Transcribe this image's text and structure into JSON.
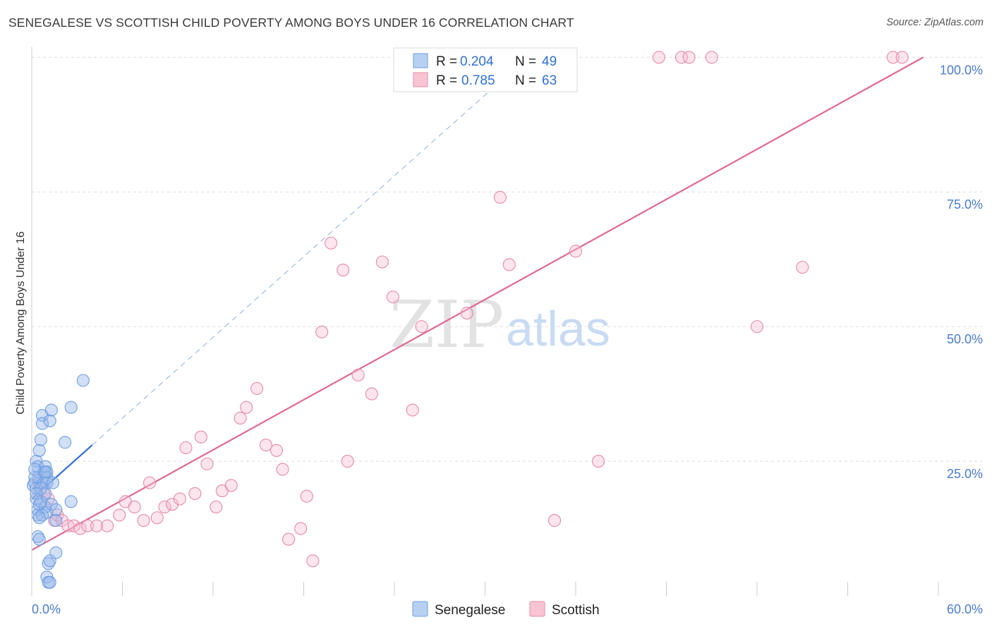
{
  "title": "SENEGALESE VS SCOTTISH CHILD POVERTY AMONG BOYS UNDER 16 CORRELATION CHART",
  "source": "Source: ZipAtlas.com",
  "watermark": {
    "zip": "ZIP",
    "atlas": "atlas"
  },
  "legend": {
    "r_label": "R =",
    "n_label": "N =",
    "rows": [
      {
        "series": "Senegalese",
        "r": "0.204",
        "n": "49",
        "fill": "#b7d0f2",
        "stroke": "#6f9ee0"
      },
      {
        "series": "Scottish",
        "r": "0.785",
        "n": "63",
        "fill": "#f8c4d4",
        "stroke": "#e88aa8"
      }
    ]
  },
  "colors": {
    "senegalese_fill": "rgba(150,185,235,0.45)",
    "senegalese_stroke": "#6f9ee0",
    "senegalese_line": "#2f6fd6",
    "scottish_fill": "rgba(248,190,210,0.40)",
    "scottish_stroke": "#e58aa8",
    "scottish_line": "#e06890",
    "grid": "#dddddd",
    "tick_label": "#4a7bd0"
  },
  "chart_data": {
    "type": "scatter",
    "title": "SENEGALESE VS SCOTTISH CHILD POVERTY AMONG BOYS UNDER 16 CORRELATION CHART",
    "ylabel": "Child Poverty Among Boys Under 16",
    "xlabel": "",
    "xlim": [
      0,
      60
    ],
    "ylim": [
      0,
      102
    ],
    "x_tick_labels": [
      "0.0%",
      "60.0%"
    ],
    "y_ticks": [
      25,
      50,
      75,
      100
    ],
    "y_tick_labels": [
      "25.0%",
      "50.0%",
      "75.0%",
      "100.0%"
    ],
    "grid": true,
    "legend_position": "top-center",
    "series": [
      {
        "name": "Senegalese",
        "points": [
          [
            0.1,
            20.5
          ],
          [
            0.2,
            22
          ],
          [
            0.2,
            21
          ],
          [
            0.3,
            20
          ],
          [
            0.3,
            18
          ],
          [
            0.3,
            25
          ],
          [
            0.4,
            24
          ],
          [
            0.4,
            22
          ],
          [
            0.4,
            16
          ],
          [
            0.4,
            15
          ],
          [
            0.4,
            11
          ],
          [
            0.5,
            27
          ],
          [
            0.5,
            17
          ],
          [
            0.5,
            10.5
          ],
          [
            0.6,
            29
          ],
          [
            0.7,
            33.5
          ],
          [
            0.7,
            32
          ],
          [
            0.8,
            23
          ],
          [
            0.8,
            21
          ],
          [
            0.9,
            19
          ],
          [
            0.9,
            16.5
          ],
          [
            0.9,
            24
          ],
          [
            1.0,
            23
          ],
          [
            1.0,
            22
          ],
          [
            1.0,
            21
          ],
          [
            1.0,
            15.5
          ],
          [
            1.0,
            3.5
          ],
          [
            1.1,
            2.5
          ],
          [
            1.1,
            6
          ],
          [
            1.2,
            2.5
          ],
          [
            1.2,
            6.5
          ],
          [
            1.2,
            32.5
          ],
          [
            1.3,
            17
          ],
          [
            1.3,
            34.5
          ],
          [
            1.4,
            21
          ],
          [
            1.6,
            16
          ],
          [
            1.6,
            8
          ],
          [
            1.6,
            14
          ],
          [
            2.2,
            28.5
          ],
          [
            2.6,
            17.5
          ],
          [
            2.6,
            35
          ],
          [
            3.4,
            40
          ],
          [
            0.6,
            20
          ],
          [
            0.7,
            15
          ],
          [
            0.5,
            14.5
          ],
          [
            0.2,
            23.5
          ],
          [
            0.3,
            19
          ],
          [
            0.6,
            17.5
          ],
          [
            0.9,
            23
          ]
        ],
        "trend": {
          "x": [
            0,
            4
          ],
          "y": [
            18.0,
            28.0
          ]
        },
        "trend_extension": {
          "x": [
            4,
            32
          ],
          "y": [
            28.0,
            98
          ]
        }
      },
      {
        "name": "Scottish",
        "points": [
          [
            0.5,
            21
          ],
          [
            0.8,
            19
          ],
          [
            1.1,
            18
          ],
          [
            1.5,
            14
          ],
          [
            1.7,
            15
          ],
          [
            2.0,
            14
          ],
          [
            2.4,
            13
          ],
          [
            2.8,
            13
          ],
          [
            3.2,
            12.5
          ],
          [
            3.7,
            13
          ],
          [
            4.3,
            13
          ],
          [
            5.0,
            13
          ],
          [
            5.8,
            15
          ],
          [
            6.2,
            17.5
          ],
          [
            6.8,
            16.5
          ],
          [
            7.4,
            14
          ],
          [
            7.8,
            21
          ],
          [
            8.3,
            14.5
          ],
          [
            8.8,
            16.5
          ],
          [
            9.3,
            17
          ],
          [
            9.8,
            18
          ],
          [
            10.2,
            27.5
          ],
          [
            10.8,
            19
          ],
          [
            11.2,
            29.5
          ],
          [
            11.6,
            24.5
          ],
          [
            12.2,
            16.5
          ],
          [
            12.6,
            19.5
          ],
          [
            13.2,
            20.5
          ],
          [
            13.8,
            33
          ],
          [
            14.2,
            35
          ],
          [
            14.9,
            38.5
          ],
          [
            15.5,
            28
          ],
          [
            16.2,
            27
          ],
          [
            16.6,
            23.5
          ],
          [
            17.0,
            10.5
          ],
          [
            17.8,
            12.5
          ],
          [
            18.2,
            18.5
          ],
          [
            18.6,
            6.5
          ],
          [
            19.2,
            49
          ],
          [
            19.8,
            65.5
          ],
          [
            20.6,
            60.5
          ],
          [
            20.9,
            25
          ],
          [
            21.6,
            41
          ],
          [
            22.5,
            37.5
          ],
          [
            23.2,
            62
          ],
          [
            23.9,
            55.5
          ],
          [
            24.4,
            100
          ],
          [
            25.2,
            34.5
          ],
          [
            25.8,
            50
          ],
          [
            28.8,
            52.5
          ],
          [
            31.0,
            74
          ],
          [
            31.6,
            61.5
          ],
          [
            34.6,
            14
          ],
          [
            36.0,
            64
          ],
          [
            37.5,
            25
          ],
          [
            41.5,
            100
          ],
          [
            43.0,
            100
          ],
          [
            43.5,
            100
          ],
          [
            45.0,
            100
          ],
          [
            48.0,
            50
          ],
          [
            51.0,
            61
          ],
          [
            57.0,
            100
          ],
          [
            57.6,
            100
          ]
        ],
        "trend": {
          "x": [
            0,
            59
          ],
          "y": [
            8.5,
            100.0
          ]
        }
      }
    ]
  }
}
